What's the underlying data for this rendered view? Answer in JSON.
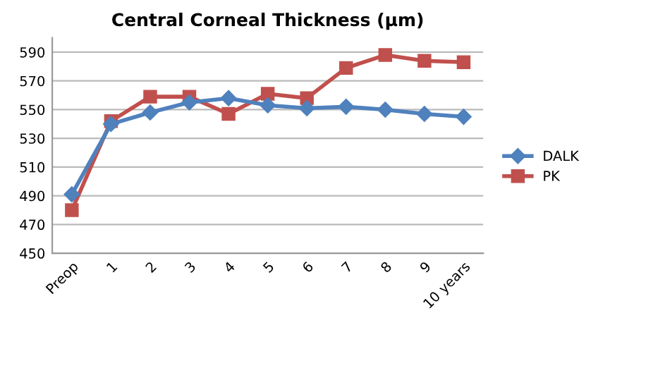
{
  "chart_data": {
    "type": "line",
    "title": "Central Corneal Thickness (µm)",
    "categories": [
      "Preop",
      "1",
      "2",
      "3",
      "4",
      "5",
      "6",
      "7",
      "8",
      "9",
      "10 years"
    ],
    "series": [
      {
        "name": "DALK",
        "color": "#4f81bd",
        "marker": "diamond",
        "values": [
          491,
          540,
          548,
          555,
          558,
          553,
          551,
          552,
          550,
          547,
          545
        ]
      },
      {
        "name": "PK",
        "color": "#c0504d",
        "marker": "square",
        "values": [
          480,
          542,
          559,
          559,
          547,
          561,
          558,
          579,
          588,
          584,
          583
        ]
      }
    ],
    "ylim": [
      450,
      600
    ],
    "yticks": [
      450,
      470,
      490,
      510,
      530,
      550,
      570,
      590
    ],
    "grid": "y",
    "legend": "right",
    "line_style": "solid"
  }
}
